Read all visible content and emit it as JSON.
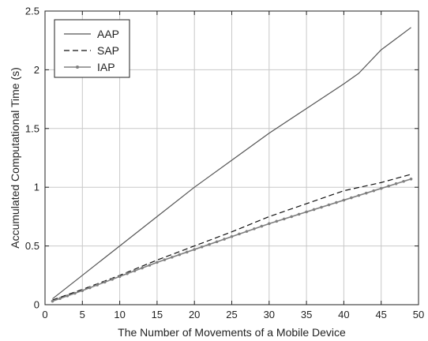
{
  "chart_data": {
    "type": "line",
    "title": "",
    "xlabel": "The Number of Movements of a Mobile Device",
    "ylabel": "Accumulated Computational Time (s)",
    "xlim": [
      0,
      50
    ],
    "ylim": [
      0,
      2.5
    ],
    "xticks": [
      0,
      5,
      10,
      15,
      20,
      25,
      30,
      35,
      40,
      45,
      50
    ],
    "yticks": [
      0,
      0.5,
      1,
      1.5,
      2,
      2.5
    ],
    "xtick_labels": [
      "0",
      "5",
      "10",
      "15",
      "20",
      "25",
      "30",
      "35",
      "40",
      "45",
      "50"
    ],
    "ytick_labels": [
      "0",
      "0.5",
      "1",
      "1.5",
      "2",
      "2.5"
    ],
    "grid": true,
    "legend_position": "top-left",
    "series": [
      {
        "name": "AAP",
        "style": "solid",
        "color": "#555555",
        "x": [
          1,
          5,
          10,
          15,
          20,
          25,
          30,
          35,
          40,
          42,
          45,
          49
        ],
        "y": [
          0.05,
          0.25,
          0.5,
          0.75,
          1.0,
          1.23,
          1.46,
          1.67,
          1.88,
          1.97,
          2.17,
          2.36
        ]
      },
      {
        "name": "SAP",
        "style": "dashed",
        "color": "#111111",
        "x": [
          1,
          5,
          10,
          15,
          20,
          25,
          30,
          35,
          40,
          45,
          49
        ],
        "y": [
          0.04,
          0.13,
          0.25,
          0.38,
          0.5,
          0.62,
          0.75,
          0.86,
          0.97,
          1.04,
          1.11
        ]
      },
      {
        "name": "IAP",
        "style": "solid-markers",
        "color": "#808080",
        "x": [
          1,
          5,
          10,
          15,
          20,
          25,
          30,
          35,
          40,
          45,
          49
        ],
        "y": [
          0.03,
          0.12,
          0.24,
          0.36,
          0.47,
          0.58,
          0.69,
          0.79,
          0.89,
          0.99,
          1.07
        ]
      }
    ]
  }
}
